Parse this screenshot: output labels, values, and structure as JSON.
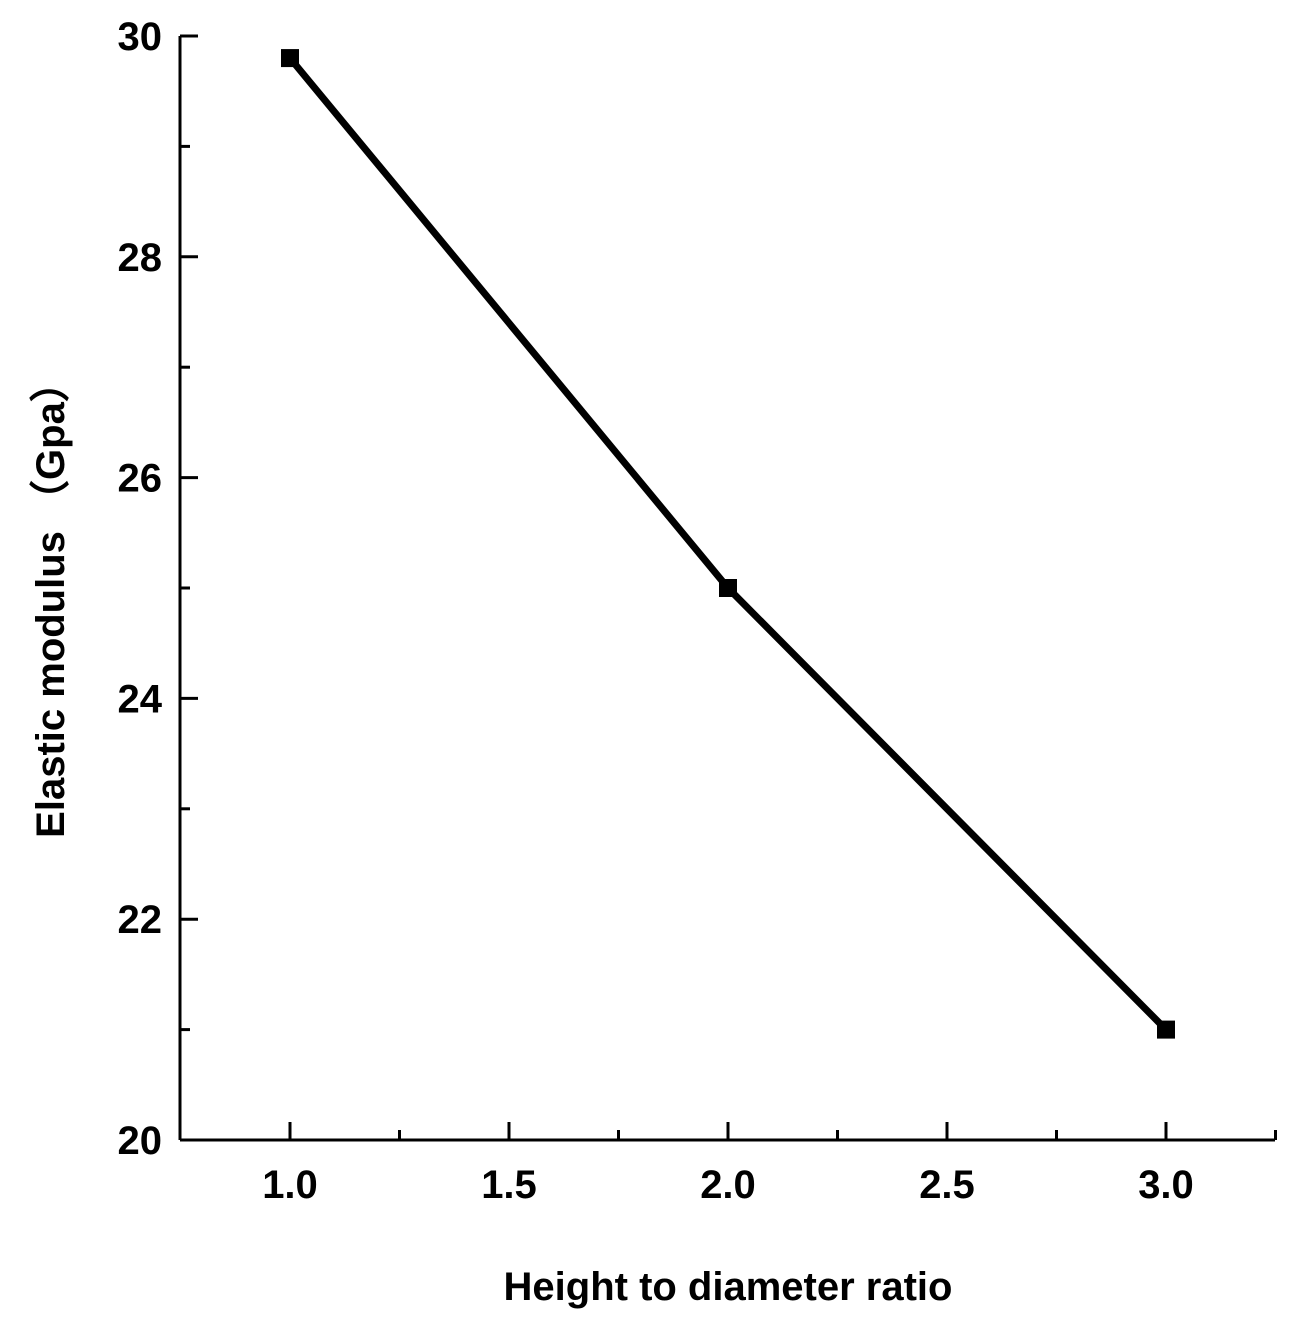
{
  "chart_data": {
    "type": "line",
    "title": "",
    "xlabel": "Height to diameter ratio",
    "ylabel": "Elastic modulus （Gpa）",
    "xlim": [
      0.75,
      3.25
    ],
    "ylim": [
      20,
      30
    ],
    "x_ticks": [
      1.0,
      1.5,
      2.0,
      2.5,
      3.0
    ],
    "x_tick_labels": [
      "1.0",
      "1.5",
      "2.0",
      "2.5",
      "3.0"
    ],
    "x_minor_ticks": [
      1.25,
      1.75,
      2.25,
      2.75,
      3.25
    ],
    "y_ticks": [
      20,
      22,
      24,
      26,
      28,
      30
    ],
    "y_tick_labels": [
      "20",
      "22",
      "24",
      "26",
      "28",
      "30"
    ],
    "y_minor_ticks": [
      21,
      23,
      25,
      27,
      29
    ],
    "grid": false,
    "legend": "none",
    "series": [
      {
        "x": [
          1.0,
          2.0,
          3.0
        ],
        "values": [
          29.8,
          25.0,
          21.0
        ],
        "marker": "square",
        "color": "#000000"
      }
    ]
  }
}
